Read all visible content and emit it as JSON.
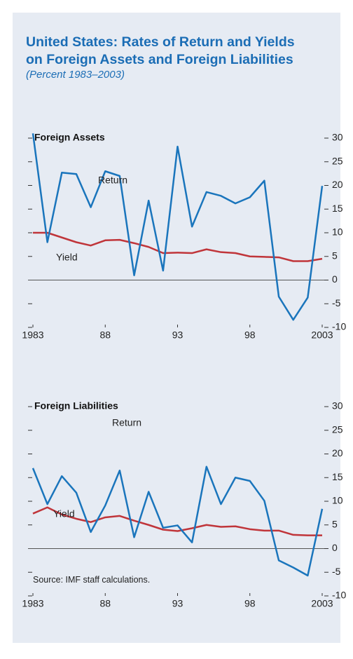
{
  "title": "United States: Rates of Return and Yields on Foreign Assets and Foreign Liabilities",
  "subtitle": "(Percent 1983–2003)",
  "source": "Source: IMF staff calculations.",
  "chart_data": [
    {
      "type": "line",
      "title": "Foreign Assets",
      "x": [
        1983,
        1984,
        1985,
        1986,
        1987,
        1988,
        1989,
        1990,
        1991,
        1992,
        1993,
        1994,
        1995,
        1996,
        1997,
        1998,
        1999,
        2000,
        2001,
        2002,
        2003
      ],
      "xlim": [
        1983,
        2003
      ],
      "xticks": [
        1983,
        {
          "value": 1988,
          "label": "88"
        },
        {
          "value": 1993,
          "label": "93"
        },
        {
          "value": 1998,
          "label": "98"
        },
        2003
      ],
      "ylim": [
        -10,
        30
      ],
      "yticks": [
        30,
        25,
        20,
        15,
        10,
        5,
        0,
        -5,
        -10
      ],
      "series": [
        {
          "name": "Return",
          "color": "#1a75bc",
          "values": [
            31,
            8,
            22.7,
            22.4,
            15.4,
            23,
            22,
            1,
            16.8,
            2,
            28.2,
            11.3,
            18.6,
            17.8,
            16.2,
            17.5,
            21,
            -3.5,
            -8.4,
            -3.7,
            19.9
          ]
        },
        {
          "name": "Yield",
          "color": "#c0353a",
          "values": [
            10,
            10,
            9,
            8,
            7.3,
            8.4,
            8.5,
            7.8,
            7,
            5.7,
            5.8,
            5.7,
            6.5,
            5.9,
            5.7,
            5,
            4.9,
            4.8,
            4,
            4,
            4.5
          ]
        }
      ]
    },
    {
      "type": "line",
      "title": "Foreign Liabilities",
      "x": [
        1983,
        1984,
        1985,
        1986,
        1987,
        1988,
        1989,
        1990,
        1991,
        1992,
        1993,
        1994,
        1995,
        1996,
        1997,
        1998,
        1999,
        2000,
        2001,
        2002,
        2003
      ],
      "xlim": [
        1983,
        2003
      ],
      "xticks": [
        1983,
        {
          "value": 1988,
          "label": "88"
        },
        {
          "value": 1993,
          "label": "93"
        },
        {
          "value": 1998,
          "label": "98"
        },
        2003
      ],
      "ylim": [
        -10,
        30
      ],
      "yticks": [
        30,
        25,
        20,
        15,
        10,
        5,
        0,
        -5,
        -10
      ],
      "series": [
        {
          "name": "Return",
          "color": "#1a75bc",
          "values": [
            17,
            9.4,
            15.3,
            11.8,
            3.5,
            9.1,
            16.5,
            2.4,
            12,
            4.4,
            4.9,
            1.3,
            17.3,
            9.4,
            15,
            14.3,
            10.1,
            -2.5,
            -4,
            -5.7,
            8.4
          ]
        },
        {
          "name": "Yield",
          "color": "#c0353a",
          "values": [
            7.4,
            8.7,
            7.2,
            6.3,
            5.6,
            6.6,
            6.9,
            5.9,
            5,
            4,
            3.7,
            4.3,
            5,
            4.6,
            4.7,
            4.1,
            3.8,
            3.8,
            2.9,
            2.8,
            2.8
          ]
        }
      ]
    }
  ]
}
